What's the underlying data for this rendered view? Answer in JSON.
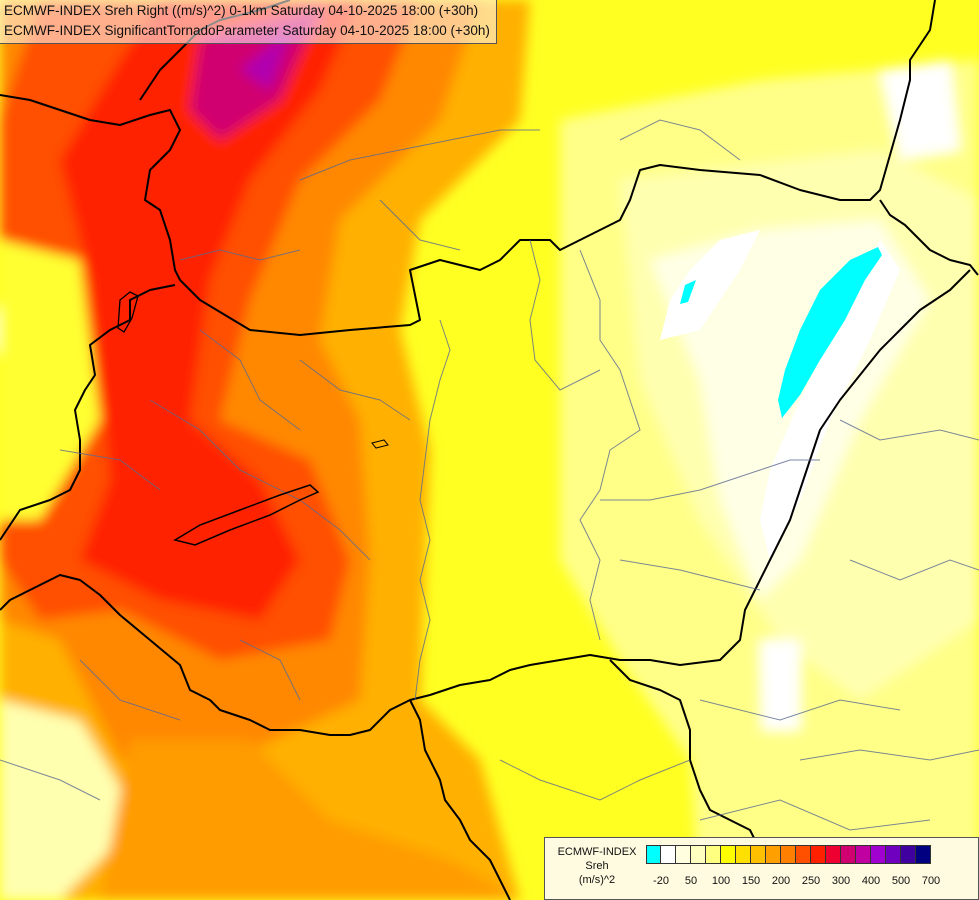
{
  "title": {
    "line1": "ECMWF-INDEX Sreh Right ((m/s)^2) 0-1km Saturday 04-10-2025 18:00 (+30h)",
    "line2": "ECMWF-INDEX SignificantTornadoParameter Saturday 04-10-2025 18:00 (+30h)"
  },
  "legend": {
    "title": [
      "ECMWF-INDEX",
      "Sreh",
      "(m/s)^2"
    ],
    "colors": [
      "#00ffff",
      "#ffffff",
      "#ffffe0",
      "#ffffc0",
      "#ffff80",
      "#ffff00",
      "#ffe000",
      "#ffc000",
      "#ffa000",
      "#ff8000",
      "#ff5000",
      "#ff2000",
      "#ee0030",
      "#d00070",
      "#c000a0",
      "#a000d0",
      "#7000c0",
      "#4000a0",
      "#000080"
    ],
    "ticks": [
      "-20",
      "50",
      "100",
      "150",
      "200",
      "250",
      "300",
      "400",
      "500",
      "700"
    ]
  }
}
